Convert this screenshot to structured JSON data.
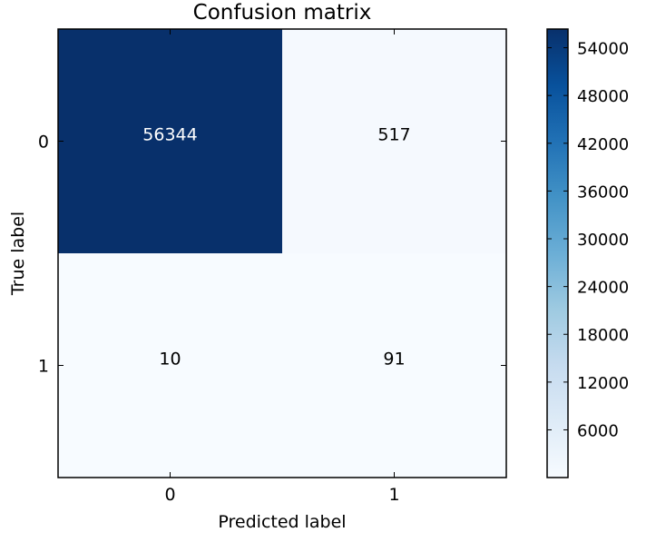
{
  "chart_data": {
    "type": "heatmap",
    "title": "Confusion matrix",
    "xlabel": "Predicted label",
    "ylabel": "True label",
    "x_categories": [
      "0",
      "1"
    ],
    "y_categories": [
      "0",
      "1"
    ],
    "matrix": [
      [
        56344,
        517
      ],
      [
        10,
        91
      ]
    ],
    "colormap": "Blues",
    "colormap_light": "#f7fbff",
    "colormap_dark": "#08306b",
    "text_color_light": "#ffffff",
    "text_color_dark": "#000000",
    "colorbar": {
      "ticks": [
        6000,
        12000,
        18000,
        24000,
        30000,
        36000,
        42000,
        48000,
        54000
      ],
      "tick_labels": [
        "6000",
        "12000",
        "18000",
        "24000",
        "30000",
        "36000",
        "42000",
        "48000",
        "54000"
      ],
      "range": [
        10,
        56344
      ]
    }
  }
}
